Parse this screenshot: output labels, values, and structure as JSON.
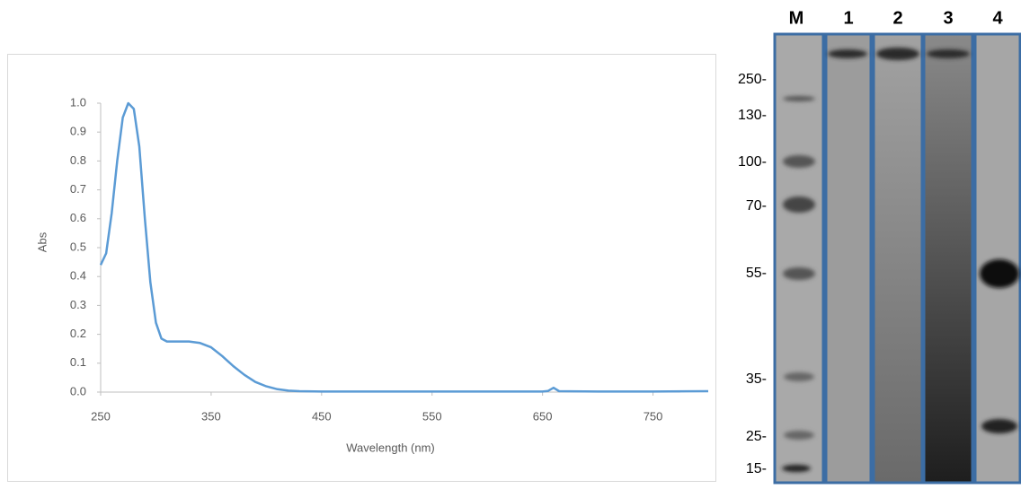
{
  "chart_data": {
    "type": "line",
    "x_label": "Wavelength (nm)",
    "y_label": "Abs",
    "color": "#5b9bd5",
    "x": [
      250,
      255,
      260,
      265,
      270,
      275,
      280,
      285,
      290,
      295,
      300,
      305,
      310,
      320,
      330,
      340,
      350,
      360,
      370,
      380,
      390,
      400,
      410,
      420,
      430,
      450,
      500,
      600,
      650,
      655,
      660,
      665,
      700,
      750,
      800
    ],
    "values": [
      0.44,
      0.48,
      0.62,
      0.8,
      0.95,
      1.0,
      0.98,
      0.85,
      0.6,
      0.38,
      0.24,
      0.185,
      0.175,
      0.175,
      0.175,
      0.17,
      0.155,
      0.125,
      0.09,
      0.06,
      0.035,
      0.02,
      0.01,
      0.005,
      0.003,
      0.002,
      0.002,
      0.002,
      0.002,
      0.004,
      0.015,
      0.003,
      0.002,
      0.002,
      0.003
    ],
    "xlim": [
      250,
      800
    ],
    "xticks": [
      250,
      350,
      450,
      550,
      650,
      750
    ],
    "ylim": [
      0,
      1
    ],
    "yticks": [
      {
        "value": 0,
        "label": "0.0"
      },
      0.1,
      0.2,
      0.3,
      0.4,
      0.5,
      0.6,
      0.7,
      0.8,
      0.9,
      {
        "value": 1,
        "label": "1.0"
      }
    ],
    "grid": false
  },
  "gel": {
    "lanes": [
      "M",
      "1",
      "2",
      "3",
      "4"
    ],
    "markers": [
      "250-",
      "130-",
      "100-",
      "70-",
      "55-",
      "35-",
      "25-",
      "15-"
    ]
  }
}
